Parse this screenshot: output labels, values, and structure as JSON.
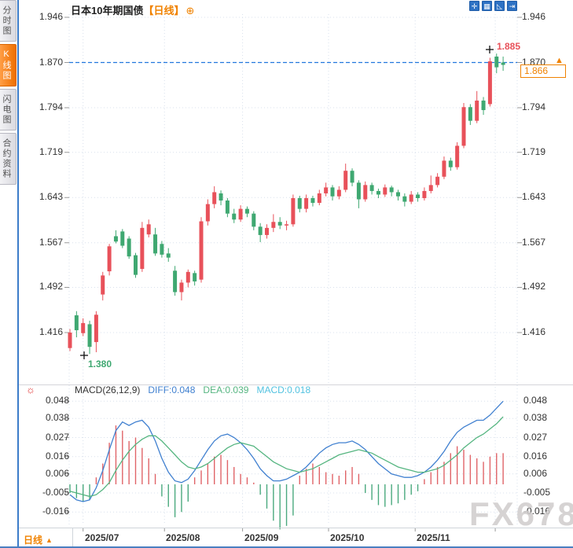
{
  "header": {
    "title": "日本10年期国债",
    "period_tag": "【日线】",
    "plus_icon": "⊕"
  },
  "sidebar": {
    "tabs": [
      {
        "label": "分时图",
        "active": false
      },
      {
        "label": "K线图",
        "active": true
      },
      {
        "label": "闪电图",
        "active": false
      },
      {
        "label": "合约资料",
        "active": false
      }
    ]
  },
  "toolbar": {
    "icons": [
      {
        "name": "pan-crosshair-icon",
        "glyph": "✛"
      },
      {
        "name": "axis-range-icon",
        "glyph": "▦"
      },
      {
        "name": "chart-type-icon",
        "glyph": "◺"
      },
      {
        "name": "exit-icon",
        "glyph": "⇥"
      }
    ]
  },
  "annotations": {
    "high": "1.885",
    "low": "1.380",
    "last_price": "1.866",
    "ref_line": 1.87
  },
  "macd_header": {
    "label": "MACD(26,12,9)",
    "diff": "DIFF:0.048",
    "dea": "DEA:0.039",
    "macd": "MACD:0.018"
  },
  "bottom": {
    "period": "日线",
    "arrow": "▲"
  },
  "watermark": "FX678",
  "colors": {
    "up": "#e8515a",
    "down": "#3fa871",
    "ref_line": "#2277dd",
    "dif": "#4080d0",
    "dea": "#55b580",
    "hist_up": "#e06468",
    "hist_down": "#4aa97e",
    "accent": "#f08200",
    "grid": "#d8e0ec",
    "tick": "#999999"
  },
  "chart_data": {
    "type": "candlestick",
    "title": "日本10年期国债 日线",
    "y_ticks": [
      1.946,
      1.87,
      1.794,
      1.719,
      1.643,
      1.567,
      1.492,
      1.416
    ],
    "ylim": [
      1.38,
      1.946
    ],
    "x_labels": [
      "2025/07",
      "2025/08",
      "2025/09",
      "2025/10",
      "2025/11",
      ""
    ],
    "x_tick_indices": [
      2.0,
      14.4,
      26.3,
      39.4,
      52.6,
      64.8
    ],
    "ohlc": [
      [
        1.39,
        1.422,
        1.385,
        1.416
      ],
      [
        1.445,
        1.452,
        1.408,
        1.42
      ],
      [
        1.415,
        1.44,
        1.41,
        1.432
      ],
      [
        1.43,
        1.436,
        1.38,
        1.392
      ],
      [
        1.4,
        1.452,
        1.383,
        1.446
      ],
      [
        1.48,
        1.518,
        1.47,
        1.512
      ],
      [
        1.519,
        1.565,
        1.512,
        1.561
      ],
      [
        1.578,
        1.588,
        1.566,
        1.569
      ],
      [
        1.586,
        1.59,
        1.558,
        1.562
      ],
      [
        1.574,
        1.578,
        1.54,
        1.544
      ],
      [
        1.546,
        1.55,
        1.508,
        1.513
      ],
      [
        1.523,
        1.602,
        1.518,
        1.592
      ],
      [
        1.581,
        1.606,
        1.576,
        1.598
      ],
      [
        1.581,
        1.592,
        1.545,
        1.549
      ],
      [
        1.565,
        1.57,
        1.542,
        1.547
      ],
      [
        1.549,
        1.558,
        1.535,
        1.542
      ],
      [
        1.52,
        1.528,
        1.478,
        1.484
      ],
      [
        1.484,
        1.505,
        1.47,
        1.5
      ],
      [
        1.5,
        1.522,
        1.492,
        1.518
      ],
      [
        1.516,
        1.52,
        1.495,
        1.502
      ],
      [
        1.505,
        1.61,
        1.5,
        1.603
      ],
      [
        1.603,
        1.64,
        1.596,
        1.632
      ],
      [
        1.632,
        1.662,
        1.625,
        1.652
      ],
      [
        1.65,
        1.655,
        1.63,
        1.638
      ],
      [
        1.638,
        1.642,
        1.61,
        1.616
      ],
      [
        1.616,
        1.624,
        1.6,
        1.606
      ],
      [
        1.606,
        1.63,
        1.602,
        1.624
      ],
      [
        1.624,
        1.628,
        1.61,
        1.616
      ],
      [
        1.616,
        1.62,
        1.588,
        1.594
      ],
      [
        1.594,
        1.6,
        1.568,
        1.58
      ],
      [
        1.58,
        1.598,
        1.574,
        1.592
      ],
      [
        1.592,
        1.615,
        1.585,
        1.602
      ],
      [
        1.602,
        1.61,
        1.59,
        1.596
      ],
      [
        1.596,
        1.604,
        1.588,
        1.598
      ],
      [
        1.598,
        1.648,
        1.594,
        1.642
      ],
      [
        1.642,
        1.646,
        1.618,
        1.624
      ],
      [
        1.624,
        1.648,
        1.618,
        1.642
      ],
      [
        1.642,
        1.646,
        1.628,
        1.634
      ],
      [
        1.634,
        1.656,
        1.63,
        1.65
      ],
      [
        1.65,
        1.668,
        1.645,
        1.66
      ],
      [
        1.66,
        1.664,
        1.638,
        1.645
      ],
      [
        1.645,
        1.662,
        1.64,
        1.656
      ],
      [
        1.656,
        1.7,
        1.652,
        1.688
      ],
      [
        1.688,
        1.692,
        1.662,
        1.668
      ],
      [
        1.668,
        1.672,
        1.625,
        1.64
      ],
      [
        1.64,
        1.67,
        1.636,
        1.664
      ],
      [
        1.664,
        1.668,
        1.648,
        1.654
      ],
      [
        1.654,
        1.658,
        1.642,
        1.648
      ],
      [
        1.648,
        1.665,
        1.644,
        1.66
      ],
      [
        1.66,
        1.663,
        1.645,
        1.652
      ],
      [
        1.652,
        1.656,
        1.638,
        1.645
      ],
      [
        1.645,
        1.65,
        1.628,
        1.636
      ],
      [
        1.636,
        1.654,
        1.632,
        1.648
      ],
      [
        1.648,
        1.652,
        1.636,
        1.642
      ],
      [
        1.642,
        1.66,
        1.638,
        1.654
      ],
      [
        1.654,
        1.68,
        1.65,
        1.664
      ],
      [
        1.664,
        1.684,
        1.66,
        1.678
      ],
      [
        1.678,
        1.712,
        1.674,
        1.705
      ],
      [
        1.705,
        1.71,
        1.688,
        1.694
      ],
      [
        1.694,
        1.736,
        1.69,
        1.73
      ],
      [
        1.73,
        1.802,
        1.726,
        1.795
      ],
      [
        1.795,
        1.8,
        1.765,
        1.772
      ],
      [
        1.772,
        1.822,
        1.768,
        1.806
      ],
      [
        1.806,
        1.812,
        1.782,
        1.79
      ],
      [
        1.8,
        1.878,
        1.796,
        1.872
      ],
      [
        1.88,
        1.885,
        1.852,
        1.862
      ],
      [
        1.87,
        1.88,
        1.856,
        1.866
      ]
    ],
    "macd": {
      "y_ticks": [
        0.048,
        0.038,
        0.027,
        0.016,
        0.006,
        -0.005,
        -0.016
      ],
      "dif": [
        -0.006,
        -0.009,
        -0.01,
        -0.009,
        -0.002,
        0.008,
        0.02,
        0.031,
        0.036,
        0.034,
        0.036,
        0.037,
        0.033,
        0.025,
        0.015,
        0.007,
        0.002,
        0.001,
        0.003,
        0.008,
        0.014,
        0.02,
        0.025,
        0.028,
        0.029,
        0.027,
        0.024,
        0.02,
        0.015,
        0.009,
        0.005,
        0.002,
        0.002,
        0.003,
        0.005,
        0.007,
        0.01,
        0.014,
        0.018,
        0.021,
        0.023,
        0.024,
        0.024,
        0.025,
        0.023,
        0.02,
        0.016,
        0.012,
        0.009,
        0.006,
        0.005,
        0.004,
        0.004,
        0.005,
        0.007,
        0.01,
        0.014,
        0.019,
        0.025,
        0.03,
        0.033,
        0.035,
        0.037,
        0.037,
        0.04,
        0.044,
        0.048
      ],
      "dea": [
        -0.004,
        -0.005,
        -0.006,
        -0.007,
        -0.006,
        -0.003,
        0.001,
        0.008,
        0.014,
        0.019,
        0.023,
        0.026,
        0.028,
        0.028,
        0.025,
        0.021,
        0.017,
        0.013,
        0.01,
        0.009,
        0.01,
        0.012,
        0.015,
        0.018,
        0.021,
        0.023,
        0.024,
        0.023,
        0.022,
        0.019,
        0.016,
        0.013,
        0.011,
        0.009,
        0.008,
        0.007,
        0.008,
        0.009,
        0.011,
        0.013,
        0.015,
        0.017,
        0.018,
        0.019,
        0.02,
        0.019,
        0.018,
        0.016,
        0.014,
        0.012,
        0.01,
        0.009,
        0.008,
        0.007,
        0.007,
        0.008,
        0.009,
        0.011,
        0.014,
        0.017,
        0.021,
        0.024,
        0.027,
        0.029,
        0.032,
        0.035,
        0.039
      ],
      "hist": [
        -0.005,
        -0.008,
        -0.01,
        -0.009,
        0.004,
        0.012,
        0.024,
        0.034,
        0.031,
        0.025,
        0.027,
        0.021,
        0.015,
        0.006,
        -0.007,
        -0.013,
        -0.019,
        -0.016,
        -0.01,
        0.004,
        0.008,
        0.012,
        0.016,
        0.017,
        0.014,
        0.01,
        0.006,
        0.004,
        0.001,
        -0.006,
        -0.014,
        -0.021,
        -0.026,
        -0.024,
        -0.018,
        0.005,
        0.009,
        0.012,
        0.01,
        0.007,
        0.006,
        0.005,
        0.008,
        0.01,
        0.006,
        -0.005,
        -0.009,
        -0.012,
        -0.013,
        -0.012,
        -0.011,
        -0.009,
        -0.006,
        -0.004,
        0.003,
        0.007,
        0.01,
        0.013,
        0.018,
        0.022,
        0.02,
        0.017,
        0.015,
        0.013,
        0.016,
        0.018,
        0.018
      ]
    }
  }
}
